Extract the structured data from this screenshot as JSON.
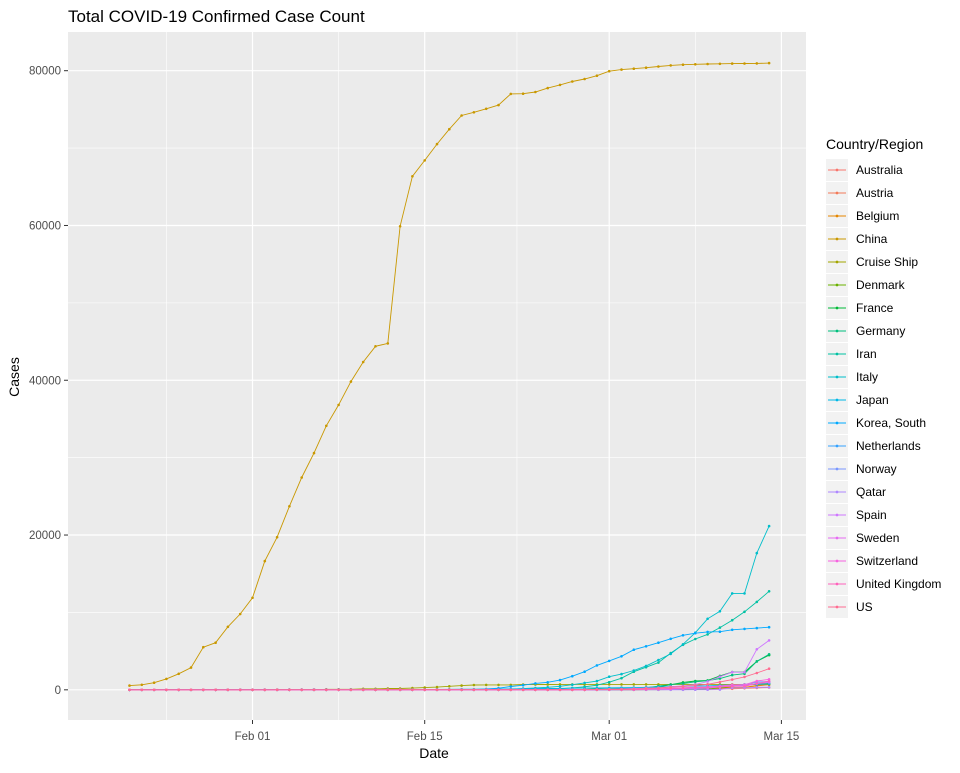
{
  "chart_data": {
    "type": "line",
    "title": "Total COVID-19 Confirmed Case Count",
    "xlabel": "Date",
    "ylabel": "Cases",
    "x_ticks": [
      "Feb 01",
      "Feb 15",
      "Mar 01",
      "Mar 15"
    ],
    "y_ticks": [
      "0",
      "20000",
      "40000",
      "60000",
      "80000"
    ],
    "xlim": [
      "2020-01-17",
      "2020-03-17"
    ],
    "ylim": [
      -3900,
      85000
    ],
    "grid": true,
    "legend_title": "Country/Region",
    "legend_position": "right",
    "dates": [
      "2020-01-22",
      "2020-01-23",
      "2020-01-24",
      "2020-01-25",
      "2020-01-26",
      "2020-01-27",
      "2020-01-28",
      "2020-01-29",
      "2020-01-30",
      "2020-01-31",
      "2020-02-01",
      "2020-02-02",
      "2020-02-03",
      "2020-02-04",
      "2020-02-05",
      "2020-02-06",
      "2020-02-07",
      "2020-02-08",
      "2020-02-09",
      "2020-02-10",
      "2020-02-11",
      "2020-02-12",
      "2020-02-13",
      "2020-02-14",
      "2020-02-15",
      "2020-02-16",
      "2020-02-17",
      "2020-02-18",
      "2020-02-19",
      "2020-02-20",
      "2020-02-21",
      "2020-02-22",
      "2020-02-23",
      "2020-02-24",
      "2020-02-25",
      "2020-02-26",
      "2020-02-27",
      "2020-02-28",
      "2020-02-29",
      "2020-03-01",
      "2020-03-02",
      "2020-03-03",
      "2020-03-04",
      "2020-03-05",
      "2020-03-06",
      "2020-03-07",
      "2020-03-08",
      "2020-03-09",
      "2020-03-10",
      "2020-03-11",
      "2020-03-12",
      "2020-03-13",
      "2020-03-14"
    ],
    "series": [
      {
        "name": "Australia",
        "color": "#F8766D",
        "values": [
          0,
          0,
          0,
          0,
          4,
          5,
          5,
          6,
          9,
          9,
          12,
          12,
          12,
          13,
          13,
          14,
          15,
          15,
          15,
          15,
          15,
          15,
          15,
          15,
          15,
          15,
          15,
          15,
          15,
          15,
          17,
          21,
          22,
          22,
          22,
          23,
          23,
          25,
          26,
          27,
          33,
          39,
          52,
          57,
          63,
          76,
          91,
          107,
          128,
          128,
          200,
          250,
          297
        ]
      },
      {
        "name": "Austria",
        "color": "#F37B59",
        "values": [
          0,
          0,
          0,
          0,
          0,
          0,
          0,
          0,
          0,
          0,
          0,
          0,
          0,
          0,
          0,
          0,
          0,
          0,
          0,
          0,
          0,
          0,
          0,
          0,
          0,
          0,
          0,
          0,
          0,
          0,
          0,
          0,
          0,
          0,
          2,
          2,
          3,
          3,
          9,
          14,
          18,
          21,
          29,
          41,
          55,
          79,
          104,
          131,
          182,
          246,
          302,
          504,
          655
        ]
      },
      {
        "name": "Belgium",
        "color": "#E58700",
        "values": [
          0,
          0,
          0,
          0,
          0,
          0,
          0,
          0,
          0,
          0,
          0,
          0,
          0,
          0,
          1,
          1,
          1,
          1,
          1,
          1,
          1,
          1,
          1,
          1,
          1,
          1,
          1,
          1,
          1,
          1,
          1,
          1,
          1,
          1,
          1,
          1,
          1,
          1,
          1,
          2,
          8,
          13,
          23,
          50,
          109,
          169,
          200,
          239,
          267,
          314,
          314,
          559,
          689
        ]
      },
      {
        "name": "China",
        "color": "#C99800",
        "values": [
          548,
          643,
          920,
          1406,
          2075,
          2877,
          5509,
          6087,
          8141,
          9802,
          11891,
          16630,
          19716,
          23707,
          27440,
          30587,
          34110,
          36814,
          39829,
          42354,
          44386,
          44759,
          59895,
          66358,
          68413,
          70513,
          72434,
          74211,
          74619,
          75077,
          75550,
          77001,
          77022,
          77241,
          77754,
          78166,
          78600,
          78928,
          79356,
          79932,
          80136,
          80261,
          80386,
          80537,
          80690,
          80770,
          80823,
          80860,
          80887,
          80921,
          80932,
          80945,
          80977
        ]
      },
      {
        "name": "Cruise Ship",
        "color": "#A3A500",
        "values": [
          0,
          0,
          0,
          0,
          0,
          0,
          0,
          0,
          0,
          0,
          0,
          0,
          0,
          0,
          0,
          0,
          61,
          61,
          64,
          135,
          135,
          175,
          175,
          218,
          285,
          355,
          454,
          542,
          621,
          634,
          634,
          634,
          691,
          691,
          691,
          705,
          705,
          705,
          705,
          705,
          705,
          706,
          706,
          706,
          696,
          696,
          696,
          696,
          696,
          696,
          696,
          696,
          696
        ]
      },
      {
        "name": "Denmark",
        "color": "#6BB100",
        "values": [
          0,
          0,
          0,
          0,
          0,
          0,
          0,
          0,
          0,
          0,
          0,
          0,
          0,
          0,
          0,
          0,
          0,
          0,
          0,
          0,
          0,
          0,
          0,
          0,
          0,
          0,
          0,
          0,
          0,
          0,
          0,
          0,
          0,
          0,
          0,
          0,
          1,
          1,
          3,
          4,
          4,
          6,
          10,
          10,
          23,
          23,
          35,
          90,
          262,
          442,
          615,
          801,
          827
        ]
      },
      {
        "name": "France",
        "color": "#00BA38",
        "values": [
          0,
          0,
          2,
          3,
          3,
          3,
          4,
          5,
          5,
          5,
          6,
          6,
          6,
          6,
          6,
          6,
          6,
          11,
          11,
          11,
          11,
          11,
          11,
          11,
          12,
          12,
          12,
          12,
          12,
          12,
          12,
          12,
          12,
          12,
          14,
          18,
          38,
          57,
          100,
          130,
          191,
          204,
          288,
          380,
          656,
          957,
          1134,
          1217,
          1792,
          2289,
          2289,
          3672,
          4480
        ]
      },
      {
        "name": "Germany",
        "color": "#00BF7D",
        "values": [
          0,
          0,
          0,
          0,
          0,
          1,
          4,
          4,
          4,
          5,
          8,
          10,
          12,
          12,
          12,
          12,
          13,
          13,
          14,
          14,
          16,
          16,
          16,
          16,
          16,
          16,
          16,
          16,
          16,
          16,
          16,
          16,
          16,
          16,
          17,
          27,
          46,
          48,
          79,
          130,
          159,
          196,
          262,
          482,
          670,
          799,
          1040,
          1176,
          1457,
          1908,
          2078,
          3675,
          4585
        ]
      },
      {
        "name": "Iran",
        "color": "#00C1A3",
        "values": [
          0,
          0,
          0,
          0,
          0,
          0,
          0,
          0,
          0,
          0,
          0,
          0,
          0,
          0,
          0,
          0,
          0,
          0,
          0,
          0,
          0,
          0,
          0,
          0,
          0,
          0,
          0,
          0,
          2,
          5,
          18,
          28,
          43,
          61,
          95,
          139,
          245,
          388,
          593,
          978,
          1501,
          2336,
          2922,
          3513,
          4747,
          5823,
          6566,
          7161,
          8042,
          9000,
          10075,
          11364,
          12729
        ]
      },
      {
        "name": "Italy",
        "color": "#00BECA",
        "values": [
          0,
          0,
          0,
          0,
          0,
          0,
          0,
          0,
          0,
          2,
          2,
          2,
          2,
          2,
          2,
          2,
          3,
          3,
          3,
          3,
          3,
          3,
          3,
          3,
          3,
          3,
          3,
          3,
          3,
          3,
          20,
          62,
          155,
          229,
          322,
          453,
          655,
          888,
          1128,
          1694,
          2036,
          2502,
          3089,
          3858,
          4636,
          5883,
          7375,
          9172,
          10149,
          12462,
          12462,
          17660,
          21157
        ]
      },
      {
        "name": "Japan",
        "color": "#00B8E7",
        "values": [
          2,
          1,
          2,
          2,
          4,
          4,
          7,
          7,
          11,
          15,
          20,
          20,
          20,
          22,
          22,
          45,
          25,
          25,
          26,
          26,
          26,
          28,
          28,
          29,
          43,
          59,
          66,
          74,
          84,
          94,
          105,
          122,
          147,
          159,
          170,
          189,
          214,
          228,
          241,
          256,
          274,
          293,
          331,
          360,
          420,
          461,
          502,
          511,
          581,
          639,
          639,
          701,
          773
        ]
      },
      {
        "name": "Korea, South",
        "color": "#00A9FF",
        "values": [
          1,
          1,
          2,
          2,
          3,
          4,
          4,
          4,
          4,
          11,
          12,
          15,
          15,
          16,
          19,
          23,
          24,
          24,
          25,
          27,
          28,
          28,
          28,
          28,
          28,
          29,
          30,
          31,
          31,
          104,
          204,
          433,
          602,
          833,
          977,
          1261,
          1766,
          2337,
          3150,
          3736,
          4335,
          5186,
          5621,
          6088,
          6593,
          7041,
          7314,
          7478,
          7513,
          7755,
          7869,
          7979,
          8086
        ]
      },
      {
        "name": "Netherlands",
        "color": "#35A2FF",
        "values": [
          0,
          0,
          0,
          0,
          0,
          0,
          0,
          0,
          0,
          0,
          0,
          0,
          0,
          0,
          0,
          0,
          0,
          0,
          0,
          0,
          0,
          0,
          0,
          0,
          0,
          0,
          0,
          0,
          0,
          0,
          0,
          0,
          0,
          0,
          0,
          0,
          1,
          1,
          6,
          10,
          18,
          24,
          38,
          82,
          128,
          188,
          265,
          321,
          382,
          503,
          503,
          806,
          962
        ]
      },
      {
        "name": "Norway",
        "color": "#7997FF",
        "values": [
          0,
          0,
          0,
          0,
          0,
          0,
          0,
          0,
          0,
          0,
          0,
          0,
          0,
          0,
          0,
          0,
          0,
          0,
          0,
          0,
          0,
          0,
          0,
          0,
          0,
          0,
          0,
          0,
          0,
          0,
          0,
          0,
          0,
          0,
          0,
          1,
          1,
          6,
          15,
          19,
          25,
          32,
          56,
          87,
          108,
          147,
          176,
          205,
          400,
          598,
          702,
          996,
          1090
        ]
      },
      {
        "name": "Qatar",
        "color": "#AF88FF",
        "values": [
          0,
          0,
          0,
          0,
          0,
          0,
          0,
          0,
          0,
          0,
          0,
          0,
          0,
          0,
          0,
          0,
          0,
          0,
          0,
          0,
          0,
          0,
          0,
          0,
          0,
          0,
          0,
          0,
          0,
          0,
          0,
          0,
          0,
          0,
          0,
          0,
          0,
          0,
          1,
          1,
          3,
          7,
          8,
          8,
          8,
          8,
          15,
          18,
          24,
          262,
          262,
          320,
          337
        ]
      },
      {
        "name": "Spain",
        "color": "#CF78FF",
        "values": [
          0,
          0,
          0,
          0,
          0,
          0,
          0,
          0,
          0,
          0,
          1,
          1,
          1,
          1,
          1,
          1,
          1,
          1,
          2,
          2,
          2,
          2,
          2,
          2,
          2,
          2,
          2,
          2,
          2,
          2,
          2,
          2,
          2,
          2,
          6,
          13,
          15,
          32,
          45,
          84,
          120,
          165,
          222,
          259,
          400,
          500,
          673,
          1073,
          1695,
          2277,
          2277,
          5232,
          6391
        ]
      },
      {
        "name": "Sweden",
        "color": "#E76BF3",
        "values": [
          0,
          0,
          0,
          0,
          0,
          0,
          0,
          0,
          0,
          0,
          1,
          1,
          1,
          1,
          1,
          1,
          1,
          1,
          1,
          1,
          1,
          1,
          1,
          1,
          1,
          1,
          1,
          1,
          1,
          1,
          1,
          1,
          1,
          1,
          1,
          2,
          7,
          7,
          12,
          14,
          15,
          21,
          35,
          94,
          101,
          161,
          203,
          248,
          355,
          500,
          599,
          814,
          961
        ]
      },
      {
        "name": "Switzerland",
        "color": "#F763E0",
        "values": [
          0,
          0,
          0,
          0,
          0,
          0,
          0,
          0,
          0,
          0,
          0,
          0,
          0,
          0,
          0,
          0,
          0,
          0,
          0,
          0,
          0,
          0,
          0,
          0,
          0,
          0,
          0,
          0,
          0,
          0,
          0,
          0,
          0,
          0,
          1,
          1,
          8,
          8,
          18,
          27,
          42,
          56,
          90,
          114,
          214,
          268,
          337,
          374,
          491,
          652,
          652,
          1139,
          1359
        ]
      },
      {
        "name": "United Kingdom",
        "color": "#FF62BC",
        "values": [
          0,
          0,
          0,
          0,
          0,
          0,
          0,
          0,
          0,
          2,
          2,
          2,
          2,
          2,
          2,
          2,
          3,
          3,
          3,
          8,
          8,
          9,
          9,
          9,
          9,
          9,
          9,
          9,
          9,
          9,
          9,
          9,
          9,
          13,
          13,
          13,
          15,
          20,
          23,
          36,
          40,
          51,
          86,
          116,
          164,
          207,
          274,
          322,
          384,
          459,
          459,
          802,
          1144
        ]
      },
      {
        "name": "US",
        "color": "#FF6C91",
        "values": [
          1,
          1,
          2,
          2,
          5,
          5,
          5,
          5,
          5,
          6,
          8,
          8,
          11,
          11,
          11,
          12,
          12,
          12,
          12,
          12,
          13,
          13,
          14,
          14,
          14,
          14,
          14,
          14,
          14,
          14,
          16,
          16,
          16,
          16,
          16,
          16,
          17,
          24,
          30,
          53,
          73,
          104,
          181,
          233,
          338,
          445,
          572,
          717,
          1004,
          1322,
          1663,
          2179,
          2726
        ]
      }
    ]
  }
}
